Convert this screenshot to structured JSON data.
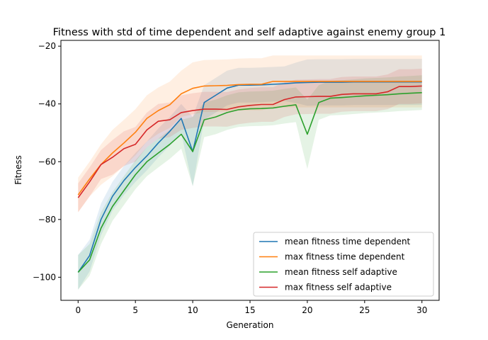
{
  "chart_data": {
    "type": "line",
    "title": "Fitness with std of time dependent and self adaptive against enemy group 1",
    "xlabel": "Generation",
    "ylabel": "Fitness",
    "xlim": [
      -1.5,
      31.5
    ],
    "ylim": [
      -108,
      -18
    ],
    "xticks": [
      0,
      5,
      10,
      15,
      20,
      25,
      30
    ],
    "yticks": [
      -100,
      -80,
      -60,
      -40,
      -20
    ],
    "legend_position": "lower right",
    "x": [
      0,
      1,
      2,
      3,
      4,
      5,
      6,
      7,
      8,
      9,
      10,
      11,
      12,
      13,
      14,
      15,
      16,
      17,
      18,
      19,
      20,
      21,
      22,
      23,
      24,
      25,
      26,
      27,
      28,
      29,
      30
    ],
    "series": [
      {
        "name": "mean fitness time dependent",
        "color": "#1f77b4",
        "values": [
          -98.3,
          -92.5,
          -80,
          -72,
          -66.5,
          -62,
          -58,
          -53.5,
          -49.5,
          -45,
          -56.5,
          -39.5,
          -37,
          -34.5,
          -33.5,
          -33.5,
          -33.4,
          -33.2,
          -33,
          -32.7,
          -32.6,
          -32.5,
          -32.5,
          -32.5,
          -32.4,
          -32.4,
          -32.4,
          -32.4,
          -32.4,
          -32.4,
          -32.4
        ],
        "std": [
          6,
          5.5,
          5.5,
          5,
          5,
          5,
          5,
          5,
          5,
          5,
          12,
          6,
          6,
          6,
          6,
          6,
          6,
          6,
          6,
          7,
          8,
          8,
          8,
          8,
          8,
          8,
          8,
          8,
          8,
          8,
          8
        ]
      },
      {
        "name": "max fitness time dependent",
        "color": "#ff7f0e",
        "values": [
          -71.5,
          -66,
          -61,
          -57,
          -53.5,
          -49.8,
          -45,
          -42.3,
          -40.3,
          -36.5,
          -34.6,
          -33.8,
          -33.7,
          -33.6,
          -33.3,
          -33.2,
          -33.2,
          -32.2,
          -32.2,
          -32.2,
          -32.2,
          -32.2,
          -32.2,
          -32.2,
          -32.2,
          -32.2,
          -32.2,
          -32.2,
          -32.2,
          -32.2,
          -32.2
        ],
        "std": [
          6,
          6,
          7,
          8,
          8,
          8,
          8,
          8,
          8,
          8,
          9,
          9,
          9,
          9,
          9,
          9,
          9,
          9,
          9,
          9,
          9,
          9,
          9,
          9,
          9,
          9,
          9,
          9,
          9,
          9,
          9
        ]
      },
      {
        "name": "mean fitness self adaptive",
        "color": "#2ca02c",
        "values": [
          -98.3,
          -94,
          -83,
          -75.5,
          -70,
          -64.5,
          -60,
          -57,
          -54,
          -50.5,
          -56.5,
          -45.5,
          -44.5,
          -43,
          -42,
          -41.7,
          -41.6,
          -41.4,
          -40.8,
          -40.3,
          -50.5,
          -39.5,
          -38,
          -37.8,
          -37.5,
          -37.2,
          -37,
          -36.8,
          -36.5,
          -36.3,
          -36.1
        ],
        "std": [
          6,
          5.5,
          5.5,
          5,
          5,
          5,
          5,
          5,
          5,
          5,
          12,
          6,
          6,
          6,
          6,
          6,
          6,
          6,
          6,
          6,
          12,
          6,
          6,
          6,
          6,
          6,
          6,
          6,
          6,
          6,
          6
        ]
      },
      {
        "name": "max fitness self adaptive",
        "color": "#d62728",
        "values": [
          -72.5,
          -67,
          -61,
          -58.5,
          -55.5,
          -54,
          -49,
          -46,
          -45.5,
          -43,
          -42.3,
          -41.8,
          -41.8,
          -41.9,
          -41,
          -40.5,
          -40.2,
          -40.2,
          -38.5,
          -37.6,
          -37.5,
          -37.4,
          -37.4,
          -36.7,
          -36.5,
          -36.5,
          -36.5,
          -35.8,
          -34,
          -34,
          -33.8
        ],
        "std": [
          5,
          5,
          5,
          6,
          6,
          6,
          6,
          6,
          6,
          6,
          6,
          6,
          6,
          6,
          6,
          6,
          6,
          6,
          6,
          6,
          6,
          6,
          6,
          6,
          6,
          6,
          6,
          6,
          6,
          6,
          6
        ]
      }
    ]
  }
}
